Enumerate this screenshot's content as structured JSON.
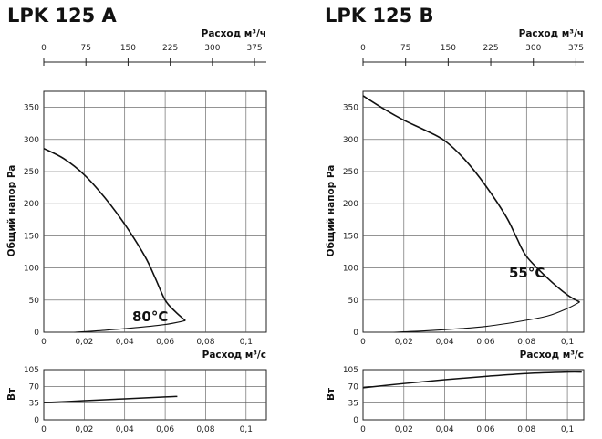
{
  "chart_data": [
    {
      "type": "line",
      "title": "LPK 125 A",
      "top_axis": {
        "label": "Расход м³/ч",
        "ticks": [
          "0",
          "75",
          "150",
          "225",
          "300",
          "375"
        ],
        "values": [
          0,
          75,
          150,
          225,
          300,
          375
        ]
      },
      "xlabel": "Расход м³/с",
      "x_ticks": [
        "0",
        "0,02",
        "0,04",
        "0,06",
        "0,08",
        "0,1"
      ],
      "x_tick_values": [
        0,
        0.02,
        0.04,
        0.06,
        0.08,
        0.1
      ],
      "xlim": [
        0,
        0.11
      ],
      "pressure": {
        "ylabel": "Общий напор Pa",
        "y_ticks": [
          "0",
          "50",
          "100",
          "150",
          "200",
          "250",
          "300",
          "350"
        ],
        "y_tick_values": [
          0,
          50,
          100,
          150,
          200,
          250,
          300,
          350
        ],
        "ylim": [
          0,
          375
        ],
        "series": [
          {
            "x": [
              0,
              0.01,
              0.02,
              0.03,
              0.04,
              0.05,
              0.055,
              0.06,
              0.065,
              0.07
            ],
            "y": [
              286,
              270,
              245,
              210,
              168,
              118,
              85,
              50,
              32,
              18
            ]
          },
          {
            "x": [
              0.015,
              0.03,
              0.045,
              0.06,
              0.07
            ],
            "y": [
              0,
              3,
              7,
              12,
              18
            ]
          }
        ],
        "annotation": "80°C"
      },
      "power": {
        "ylabel": "Вт",
        "y_ticks": [
          "0",
          "35",
          "70",
          "105"
        ],
        "y_tick_values": [
          0,
          35,
          70,
          105
        ],
        "ylim": [
          0,
          105
        ],
        "series": [
          {
            "x": [
              0,
              0.02,
              0.04,
              0.06,
              0.066
            ],
            "y": [
              36,
              40,
              44,
              48,
              49
            ]
          }
        ]
      }
    },
    {
      "type": "line",
      "title": "LPK 125 B",
      "top_axis": {
        "label": "Расход м³/ч",
        "ticks": [
          "0",
          "75",
          "150",
          "225",
          "300",
          "375"
        ],
        "values": [
          0,
          75,
          150,
          225,
          300,
          375
        ]
      },
      "xlabel": "Расход м³/с",
      "x_ticks": [
        "0",
        "0,02",
        "0,04",
        "0,06",
        "0,08",
        "0,1"
      ],
      "x_tick_values": [
        0,
        0.02,
        0.04,
        0.06,
        0.08,
        0.1
      ],
      "xlim": [
        0,
        0.108
      ],
      "pressure": {
        "ylabel": "Общий напор Pa",
        "y_ticks": [
          "0",
          "50",
          "100",
          "150",
          "200",
          "250",
          "300",
          "350"
        ],
        "y_tick_values": [
          0,
          50,
          100,
          150,
          200,
          250,
          300,
          350
        ],
        "ylim": [
          0,
          375
        ],
        "series": [
          {
            "x": [
              0,
              0.01,
              0.02,
              0.03,
              0.04,
              0.05,
              0.06,
              0.07,
              0.075,
              0.08,
              0.09,
              0.1,
              0.106
            ],
            "y": [
              368,
              348,
              330,
              315,
              298,
              268,
              228,
              180,
              148,
              118,
              85,
              58,
              47
            ]
          },
          {
            "x": [
              0.015,
              0.03,
              0.045,
              0.06,
              0.075,
              0.09,
              0.1,
              0.106
            ],
            "y": [
              0,
              2,
              5,
              9,
              16,
              25,
              37,
              47
            ]
          }
        ],
        "annotation": "55°C"
      },
      "power": {
        "ylabel": "Вт",
        "y_ticks": [
          "0",
          "35",
          "70",
          "105"
        ],
        "y_tick_values": [
          0,
          35,
          70,
          105
        ],
        "ylim": [
          0,
          105
        ],
        "series": [
          {
            "x": [
              0,
              0.02,
              0.04,
              0.06,
              0.08,
              0.1,
              0.107
            ],
            "y": [
              67,
              76,
              84,
              91,
              97,
              100,
              100
            ]
          }
        ]
      }
    }
  ]
}
